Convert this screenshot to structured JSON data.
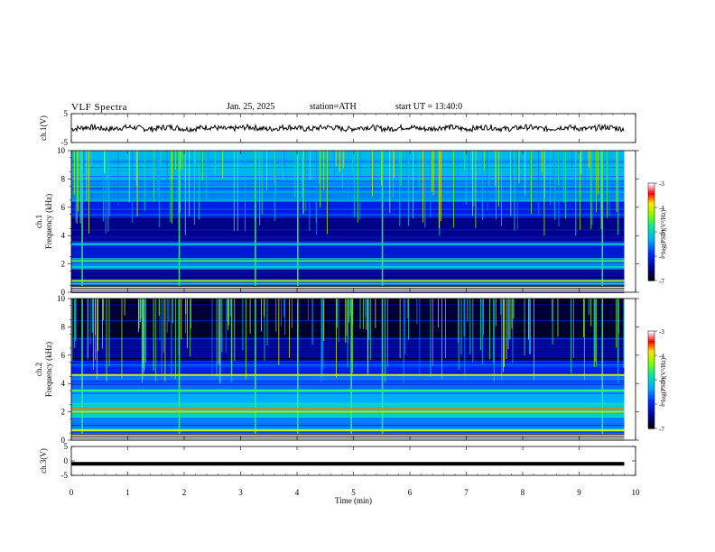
{
  "header": {
    "title": "VLF  Spectra",
    "date": "Jan. 25, 2025",
    "station": "station=ATH",
    "start": "start  UT =   13:40:0"
  },
  "chart_data": [
    {
      "panel": "ch1-voltage",
      "type": "line",
      "ylabel": "ch.1(V)",
      "ylim": [
        -5,
        5
      ],
      "yticks": [
        "5",
        "-5"
      ],
      "xlim": [
        0,
        10
      ],
      "trace_color": "#000000",
      "series": [
        {
          "x_range": [
            0,
            9.8
          ],
          "y_mean": 0,
          "y_amplitude": 1.2
        }
      ]
    },
    {
      "panel": "ch1-spectrogram",
      "type": "heatmap",
      "ylabel_top": "ch.1",
      "ylabel": "Frequency  (kHz)",
      "ylim": [
        0,
        10
      ],
      "yticks": [
        "0",
        "2",
        "4",
        "6",
        "8",
        "10"
      ],
      "xlim": [
        0,
        9.8
      ],
      "colorbar": {
        "label": "log(PSD)(V²/Hz)",
        "range": [
          -7,
          -3
        ],
        "ticks": [
          "-3",
          "-4",
          "-5",
          "-6",
          "-7"
        ]
      },
      "bands_kHz": [
        {
          "from": 10,
          "to": 8,
          "level": -5.2
        },
        {
          "from": 8,
          "to": 6.4,
          "level": -5.5
        },
        {
          "from": 6.4,
          "to": 5.2,
          "level": -6.0
        },
        {
          "from": 5.2,
          "to": 3.6,
          "level": -6.5
        },
        {
          "from": 3.6,
          "to": 2.4,
          "level": -6.1
        },
        {
          "from": 2.4,
          "to": 1.6,
          "level": -5.6
        },
        {
          "from": 1.6,
          "to": 0.9,
          "level": -6.4
        },
        {
          "from": 0.9,
          "to": 0,
          "level": -6.0
        }
      ],
      "lines_kHz": [
        {
          "f": 3.4,
          "level": -5.0
        },
        {
          "f": 2.2,
          "level": -4.5
        },
        {
          "f": 1.8,
          "level": -5.0
        },
        {
          "f": 0.8,
          "level": -4.2
        },
        {
          "f": 0.6,
          "level": -5.0
        }
      ],
      "sferics_min": [
        0.18,
        1.9,
        3.25,
        4.0,
        5.5,
        9.4
      ]
    },
    {
      "panel": "ch2-spectrogram",
      "type": "heatmap",
      "ylabel_top": "ch.2",
      "ylabel": "Frequency  (kHz)",
      "ylim": [
        0,
        10
      ],
      "yticks": [
        "0",
        "2",
        "4",
        "6",
        "8",
        "10"
      ],
      "xlim": [
        0,
        9.8
      ],
      "colorbar": {
        "label": "log(PSD)(V²/Hz)",
        "range": [
          -7,
          -3
        ],
        "ticks": [
          "-3",
          "-4",
          "-5",
          "-6",
          "-7"
        ]
      },
      "bands_kHz": [
        {
          "from": 10,
          "to": 7.2,
          "level": -6.8
        },
        {
          "from": 7.2,
          "to": 5.6,
          "level": -6.4
        },
        {
          "from": 5.6,
          "to": 4.6,
          "level": -6.0
        },
        {
          "from": 4.6,
          "to": 3.6,
          "level": -5.6
        },
        {
          "from": 3.6,
          "to": 2.6,
          "level": -5.3
        },
        {
          "from": 2.6,
          "to": 1.6,
          "level": -5.0
        },
        {
          "from": 1.6,
          "to": 0,
          "level": -5.5
        }
      ],
      "lines_kHz": [
        {
          "f": 4.6,
          "level": -4.0
        },
        {
          "f": 3.5,
          "level": -4.6
        },
        {
          "f": 2.2,
          "level": -3.6
        },
        {
          "f": 2.0,
          "level": -4.2
        },
        {
          "f": 0.7,
          "level": -4.0
        }
      ],
      "sferics_min": [
        0.18,
        1.9,
        3.25,
        4.0,
        4.95,
        5.5,
        9.4
      ]
    },
    {
      "panel": "ch3-voltage",
      "type": "line",
      "ylabel": "ch.3(V)",
      "ylim": [
        -5,
        5
      ],
      "yticks": [
        "5",
        "0",
        "-5"
      ],
      "xlim": [
        0,
        10
      ],
      "xlabel": "Time  (min)",
      "xticks": [
        "0",
        "1",
        "2",
        "3",
        "4",
        "5",
        "6",
        "7",
        "8",
        "9",
        "10"
      ],
      "series": [
        {
          "x_range": [
            0,
            9.8
          ],
          "y_mean": -1,
          "y_amplitude": 0.15
        }
      ]
    }
  ]
}
